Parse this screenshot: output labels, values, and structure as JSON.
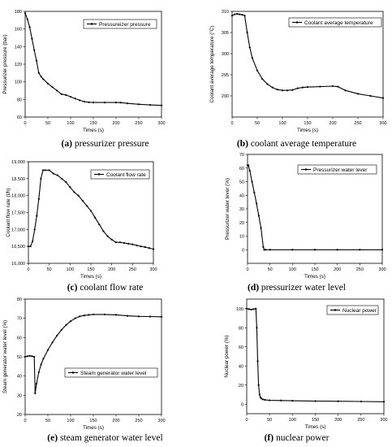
{
  "captions": [
    {
      "letter": "(a)",
      "text": " pressurizer pressure"
    },
    {
      "letter": "(b)",
      "text": " coolant average temperature"
    },
    {
      "letter": "(c)",
      "text": " coolant flow rate"
    },
    {
      "letter": "(d)",
      "text": " pressurizer water level"
    },
    {
      "letter": "(e)",
      "text": " steam generator water level"
    },
    {
      "letter": "(f)",
      "text": " nuclear power"
    }
  ],
  "chart_data": [
    {
      "id": "a",
      "type": "line",
      "xlabel": "Times (s)",
      "ylabel": "Pressurizer pressure (bar)",
      "xlim": [
        0,
        300
      ],
      "ylim": [
        60,
        180
      ],
      "xticks": [
        "0",
        "50",
        "100",
        "150",
        "200",
        "250",
        "300"
      ],
      "yticks": [
        "60",
        "80",
        "100",
        "120",
        "140",
        "160",
        "180"
      ],
      "legend_position": "top-right",
      "series": [
        {
          "name": "Pressureizer pressure",
          "x": [
            0,
            5,
            10,
            15,
            20,
            25,
            30,
            35,
            40,
            50,
            60,
            70,
            80,
            90,
            100,
            110,
            120,
            130,
            140,
            150,
            175,
            200,
            210,
            225,
            250,
            275,
            300
          ],
          "y": [
            178,
            171,
            162,
            149,
            136,
            124,
            110,
            106,
            103,
            98,
            94,
            90,
            86,
            85,
            83,
            81,
            79,
            77.5,
            76.8,
            76.5,
            76.5,
            76.5,
            76.4,
            75.5,
            74.5,
            73.8,
            73.2
          ]
        }
      ]
    },
    {
      "id": "b",
      "type": "line",
      "xlabel": "Times (s)",
      "ylabel": "Coolant average temperature (°C)",
      "xlim": [
        0,
        300
      ],
      "ylim": [
        285,
        310
      ],
      "xticks": [
        "0",
        "50",
        "100",
        "150",
        "200",
        "250",
        "300"
      ],
      "yticks": [
        "290",
        "295",
        "300",
        "305",
        "310"
      ],
      "legend_position": "top-right",
      "series": [
        {
          "name": "Coolant average temperature",
          "x": [
            0,
            5,
            10,
            15,
            20,
            25,
            30,
            35,
            40,
            50,
            60,
            70,
            80,
            90,
            100,
            110,
            120,
            130,
            140,
            150,
            175,
            200,
            210,
            225,
            250,
            275,
            300
          ],
          "y": [
            309,
            309.3,
            309.4,
            309.3,
            309.2,
            309,
            305,
            301.5,
            299,
            296,
            294,
            292.8,
            292,
            291.5,
            291.3,
            291.3,
            291.4,
            291.8,
            292,
            292.1,
            292.2,
            292.3,
            292.2,
            291.3,
            290.5,
            290,
            289.5
          ]
        }
      ]
    },
    {
      "id": "c",
      "type": "line",
      "xlabel": "Times (s)",
      "ylabel": "Coolant flow rate (t/h)",
      "xlim": [
        0,
        300
      ],
      "ylim": [
        16000,
        19000
      ],
      "xticks": [
        "0",
        "50",
        "100",
        "150",
        "200",
        "250",
        "300"
      ],
      "yticks": [
        "16,000",
        "16,500",
        "17,000",
        "17,500",
        "18,000",
        "18,500",
        "19,000"
      ],
      "legend_position": "top-right",
      "series": [
        {
          "name": "Coolant flow rate",
          "x": [
            0,
            5,
            10,
            15,
            20,
            25,
            30,
            35,
            40,
            50,
            60,
            70,
            80,
            90,
            100,
            110,
            120,
            130,
            140,
            150,
            160,
            170,
            180,
            190,
            200,
            210,
            220,
            230,
            240,
            250,
            260,
            270,
            280,
            290,
            300
          ],
          "y": [
            16500,
            16500,
            16650,
            17000,
            17400,
            17900,
            18500,
            18750,
            18750,
            18750,
            18650,
            18600,
            18500,
            18400,
            18250,
            18100,
            18000,
            17850,
            17700,
            17550,
            17350,
            17150,
            16950,
            16800,
            16700,
            16620,
            16620,
            16600,
            16580,
            16560,
            16530,
            16500,
            16480,
            16450,
            16420
          ]
        }
      ]
    },
    {
      "id": "d",
      "type": "line",
      "xlabel": "Times (s)",
      "ylabel": "Pressurizer water lever (%)",
      "xlim": [
        0,
        300
      ],
      "ylim": [
        -10,
        70
      ],
      "xticks": [
        "0",
        "50",
        "100",
        "150",
        "200",
        "250",
        "300"
      ],
      "yticks": [
        "0",
        "10",
        "20",
        "30",
        "40",
        "50",
        "60",
        "70"
      ],
      "legend_position": "top-right",
      "series": [
        {
          "name": "Pressurizer water lever",
          "x": [
            0,
            2,
            5,
            10,
            15,
            20,
            25,
            30,
            35,
            37,
            40,
            50,
            100,
            150,
            200,
            250,
            300
          ],
          "y": [
            62,
            62,
            58,
            50,
            42,
            34,
            25,
            16,
            2,
            0,
            0,
            0,
            0,
            0,
            0,
            0,
            0
          ]
        }
      ]
    },
    {
      "id": "e",
      "type": "line",
      "xlabel": "Times (s)",
      "ylabel": "Steam generator water level (%)",
      "xlim": [
        0,
        300
      ],
      "ylim": [
        20,
        80
      ],
      "xticks": [
        "0",
        "50",
        "100",
        "150",
        "200",
        "250",
        "300"
      ],
      "yticks": [
        "20",
        "30",
        "40",
        "50",
        "60",
        "70",
        "80"
      ],
      "legend_position": "bottom-right",
      "series": [
        {
          "name": "Steam generator water level",
          "x": [
            0,
            5,
            10,
            15,
            20,
            22,
            25,
            30,
            35,
            40,
            50,
            60,
            70,
            80,
            90,
            100,
            110,
            120,
            130,
            140,
            150,
            175,
            200,
            225,
            250,
            275,
            300
          ],
          "y": [
            50,
            50.3,
            50.5,
            50.3,
            50,
            31,
            36,
            42,
            46,
            49,
            53.5,
            57.5,
            61,
            64,
            66.5,
            68.5,
            70,
            71,
            71.5,
            71.8,
            72,
            72,
            71.8,
            71.3,
            71,
            70.9,
            70.8
          ]
        }
      ]
    },
    {
      "id": "f",
      "type": "line",
      "xlabel": "Times (s)",
      "ylabel": "Nuclear power (%)",
      "xlim": [
        0,
        300
      ],
      "ylim": [
        -10,
        110
      ],
      "xticks": [
        "0",
        "50",
        "100",
        "150",
        "200",
        "250",
        "300"
      ],
      "yticks": [
        "0",
        "20",
        "40",
        "60",
        "80",
        "100"
      ],
      "legend_position": "top-right",
      "series": [
        {
          "name": "Nuclear power",
          "x": [
            0,
            5,
            10,
            15,
            20,
            22,
            24,
            26,
            28,
            30,
            32,
            35,
            40,
            50,
            75,
            100,
            150,
            200,
            250,
            300
          ],
          "y": [
            100,
            99.5,
            99,
            99.5,
            100,
            80,
            45,
            20,
            10,
            7,
            6,
            5,
            4.5,
            4,
            3.8,
            3.5,
            3.2,
            3,
            2.8,
            2.5
          ]
        }
      ]
    }
  ]
}
